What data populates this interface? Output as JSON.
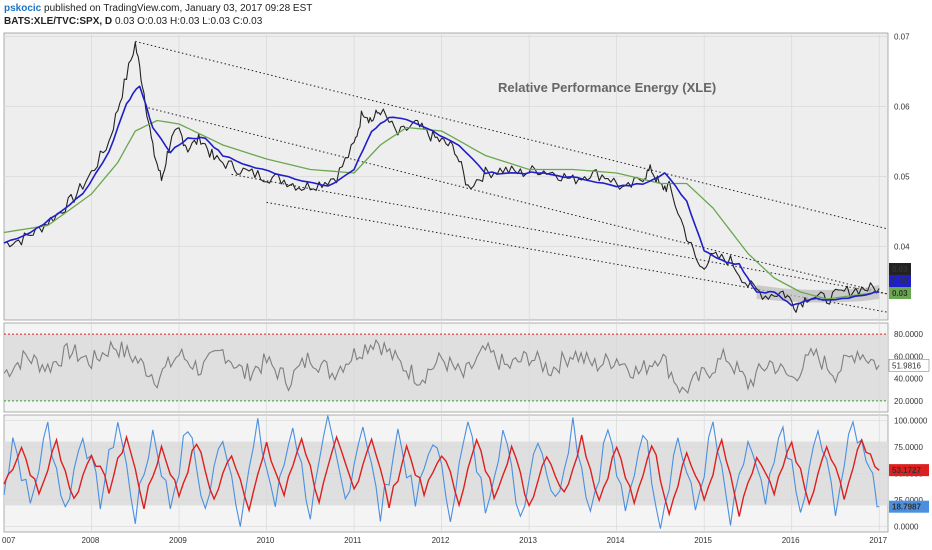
{
  "header": {
    "author": "pskocic",
    "published": "published on TradingView.com, January 03, 2017 09:28 EST",
    "symbol": "BATS:XLE/TVC:SPX, D",
    "ohlc": "0.03 O:0.03 H:0.03 L:0.03 C:0.03"
  },
  "colors": {
    "price": "#222222",
    "ma_fast": "#1f1fc8",
    "ma_slow": "#6aa84f",
    "rsi": "#7f7f7f",
    "stoch_k": "#4a8fe0",
    "stoch_d": "#dd1f1f",
    "band_fill": "#d9d9d9",
    "panel_bg": "#eeeeee",
    "upper_line": "#e02020",
    "lower_line": "#2ea02e"
  },
  "chart_data": [
    {
      "type": "line",
      "title": "Relative Performance Energy (XLE)",
      "x_ticks": [
        "007",
        "2008",
        "2009",
        "2010",
        "2011",
        "2012",
        "2013",
        "2014",
        "2015",
        "2016",
        "2017"
      ],
      "x_range": [
        2007.0,
        2017.1
      ],
      "y_ticks": [
        "0.07",
        "0.06",
        "0.05",
        "0.04"
      ],
      "ylim": [
        0.0295,
        0.0705
      ],
      "last_value_labels": [
        {
          "text": "0.03",
          "color": "#222222"
        },
        {
          "text": "0.03",
          "color": "#1f1fc8"
        },
        {
          "text": "0.03",
          "color": "#6aa84f"
        }
      ],
      "series": [
        {
          "key": "price",
          "x": [
            2007.0,
            2007.2,
            2007.4,
            2007.6,
            2007.8,
            2008.0,
            2008.2,
            2008.35,
            2008.5,
            2008.6,
            2008.7,
            2008.8,
            2008.9,
            2009.0,
            2009.1,
            2009.25,
            2009.4,
            2009.6,
            2009.8,
            2010.0,
            2010.2,
            2010.4,
            2010.6,
            2010.8,
            2011.0,
            2011.1,
            2011.2,
            2011.3,
            2011.5,
            2011.7,
            2011.85,
            2012.0,
            2012.15,
            2012.3,
            2012.5,
            2012.7,
            2012.9,
            2013.1,
            2013.3,
            2013.5,
            2013.7,
            2013.9,
            2014.1,
            2014.3,
            2014.4,
            2014.5,
            2014.6,
            2014.8,
            2014.95,
            2015.1,
            2015.3,
            2015.5,
            2015.7,
            2015.9,
            2016.05,
            2016.2,
            2016.4,
            2016.6,
            2016.8,
            2017.0
          ],
          "y": [
            0.0405,
            0.041,
            0.0425,
            0.0445,
            0.047,
            0.0505,
            0.055,
            0.062,
            0.069,
            0.062,
            0.054,
            0.0495,
            0.055,
            0.0565,
            0.054,
            0.0555,
            0.0525,
            0.0515,
            0.0505,
            0.05,
            0.0495,
            0.0485,
            0.049,
            0.05,
            0.0545,
            0.0595,
            0.058,
            0.0595,
            0.056,
            0.0575,
            0.056,
            0.055,
            0.054,
            0.0485,
            0.0505,
            0.051,
            0.0505,
            0.051,
            0.0505,
            0.0495,
            0.0505,
            0.05,
            0.048,
            0.05,
            0.051,
            0.0485,
            0.0485,
            0.0415,
            0.037,
            0.0385,
            0.038,
            0.0345,
            0.033,
            0.0335,
            0.0315,
            0.033,
            0.0325,
            0.0335,
            0.034,
            0.034
          ]
        },
        {
          "key": "ma_fast",
          "x": [
            2007.0,
            2007.3,
            2007.6,
            2007.9,
            2008.2,
            2008.4,
            2008.55,
            2008.7,
            2008.9,
            2009.1,
            2009.3,
            2009.5,
            2009.8,
            2010.1,
            2010.4,
            2010.7,
            2011.0,
            2011.2,
            2011.4,
            2011.6,
            2011.9,
            2012.2,
            2012.5,
            2012.8,
            2013.1,
            2013.4,
            2013.7,
            2014.0,
            2014.3,
            2014.55,
            2014.8,
            2015.0,
            2015.2,
            2015.4,
            2015.6,
            2015.8,
            2016.0,
            2016.2,
            2016.5,
            2016.8,
            2017.0
          ],
          "y": [
            0.0405,
            0.042,
            0.0445,
            0.0475,
            0.0535,
            0.0605,
            0.063,
            0.057,
            0.0535,
            0.0555,
            0.0555,
            0.053,
            0.0515,
            0.0505,
            0.0495,
            0.0485,
            0.051,
            0.0565,
            0.0585,
            0.058,
            0.0565,
            0.0545,
            0.0505,
            0.0505,
            0.0505,
            0.05,
            0.0495,
            0.0485,
            0.049,
            0.0505,
            0.0465,
            0.0395,
            0.038,
            0.0375,
            0.0335,
            0.0335,
            0.0315,
            0.0325,
            0.0325,
            0.033,
            0.0335
          ]
        },
        {
          "key": "ma_slow",
          "x": [
            2007.0,
            2007.5,
            2008.0,
            2008.3,
            2008.5,
            2008.75,
            2009.0,
            2009.5,
            2010.0,
            2010.5,
            2011.0,
            2011.3,
            2011.6,
            2012.0,
            2012.5,
            2013.0,
            2013.5,
            2014.0,
            2014.5,
            2014.8,
            2015.1,
            2015.5,
            2015.8,
            2016.1,
            2016.4,
            2016.7,
            2017.0
          ],
          "y": [
            0.042,
            0.043,
            0.0475,
            0.052,
            0.0565,
            0.058,
            0.0575,
            0.0545,
            0.0525,
            0.051,
            0.0505,
            0.0545,
            0.057,
            0.0565,
            0.053,
            0.051,
            0.051,
            0.0505,
            0.049,
            0.049,
            0.0455,
            0.039,
            0.0355,
            0.0335,
            0.0325,
            0.033,
            0.0335
          ]
        },
        {
          "key": "band_upper",
          "x": [
            2015.6,
            2015.9,
            2016.2,
            2016.5,
            2016.8,
            2017.0
          ],
          "y": [
            0.0345,
            0.034,
            0.0338,
            0.0338,
            0.034,
            0.0345
          ]
        },
        {
          "key": "band_lower",
          "x": [
            2015.6,
            2015.9,
            2016.2,
            2016.5,
            2016.8,
            2017.0
          ],
          "y": [
            0.0325,
            0.0322,
            0.032,
            0.032,
            0.0322,
            0.0325
          ]
        }
      ],
      "trendlines": [
        {
          "x": [
            2008.5,
            2017.1
          ],
          "y": [
            0.0693,
            0.0425
          ]
        },
        {
          "x": [
            2008.65,
            2017.1
          ],
          "y": [
            0.0598,
            0.0332
          ]
        },
        {
          "x": [
            2009.6,
            2017.1
          ],
          "y": [
            0.0503,
            0.0332
          ]
        },
        {
          "x": [
            2010.0,
            2017.1
          ],
          "y": [
            0.0463,
            0.0306
          ]
        }
      ]
    },
    {
      "type": "line",
      "y_ticks": [
        "80.0000",
        "60.0000",
        "40.0000",
        "20.0000"
      ],
      "ylim": [
        10,
        90
      ],
      "upper_level": 80,
      "lower_level": 20,
      "last_value_label": "51.9816",
      "series": [
        {
          "key": "rsi",
          "x": [
            2007.0,
            2007.25,
            2007.5,
            2007.75,
            2008.0,
            2008.25,
            2008.5,
            2008.75,
            2009.0,
            2009.25,
            2009.5,
            2009.75,
            2010.0,
            2010.25,
            2010.5,
            2010.75,
            2011.0,
            2011.25,
            2011.5,
            2011.75,
            2012.0,
            2012.25,
            2012.5,
            2012.75,
            2013.0,
            2013.25,
            2013.5,
            2013.75,
            2014.0,
            2014.25,
            2014.5,
            2014.75,
            2015.0,
            2015.25,
            2015.5,
            2015.75,
            2016.0,
            2016.25,
            2016.5,
            2016.75,
            2017.0
          ],
          "y": [
            45,
            60,
            50,
            65,
            55,
            70,
            58,
            40,
            62,
            48,
            65,
            44,
            55,
            38,
            60,
            45,
            62,
            75,
            55,
            40,
            58,
            42,
            65,
            50,
            60,
            48,
            63,
            52,
            58,
            45,
            62,
            28,
            44,
            60,
            35,
            55,
            40,
            62,
            45,
            65,
            52
          ]
        }
      ]
    },
    {
      "type": "line",
      "y_ticks": [
        "100.0000",
        "75.0000",
        "50.0000",
        "25.0000",
        "0.0000"
      ],
      "ylim": [
        -5,
        105
      ],
      "band": [
        20,
        80
      ],
      "last_value_labels": [
        {
          "text": "53.1727",
          "color": "#dd1f1f"
        },
        {
          "text": "18.7987",
          "color": "#4a8fe0"
        }
      ],
      "series": [
        {
          "key": "stoch_d",
          "x": [
            2007.0,
            2007.2,
            2007.4,
            2007.6,
            2007.8,
            2008.0,
            2008.2,
            2008.4,
            2008.6,
            2008.8,
            2009.0,
            2009.2,
            2009.4,
            2009.6,
            2009.8,
            2010.0,
            2010.2,
            2010.4,
            2010.6,
            2010.8,
            2011.0,
            2011.2,
            2011.4,
            2011.6,
            2011.8,
            2012.0,
            2012.2,
            2012.4,
            2012.6,
            2012.8,
            2013.0,
            2013.2,
            2013.4,
            2013.6,
            2013.8,
            2014.0,
            2014.2,
            2014.4,
            2014.6,
            2014.8,
            2015.0,
            2015.2,
            2015.4,
            2015.6,
            2015.8,
            2016.0,
            2016.2,
            2016.4,
            2016.6,
            2016.8,
            2017.0
          ],
          "y": [
            40,
            75,
            30,
            80,
            25,
            70,
            35,
            85,
            20,
            75,
            30,
            80,
            25,
            70,
            20,
            75,
            30,
            85,
            25,
            80,
            35,
            85,
            20,
            75,
            30,
            70,
            25,
            80,
            30,
            75,
            20,
            70,
            30,
            85,
            25,
            75,
            20,
            80,
            15,
            70,
            25,
            80,
            10,
            65,
            30,
            80,
            20,
            75,
            30,
            80,
            53
          ]
        },
        {
          "key": "stoch_k",
          "x": [
            2007.0,
            2007.1,
            2007.3,
            2007.5,
            2007.7,
            2007.9,
            2008.1,
            2008.3,
            2008.5,
            2008.7,
            2008.9,
            2009.1,
            2009.3,
            2009.5,
            2009.7,
            2009.9,
            2010.1,
            2010.3,
            2010.5,
            2010.7,
            2010.9,
            2011.1,
            2011.3,
            2011.5,
            2011.7,
            2011.9,
            2012.1,
            2012.3,
            2012.5,
            2012.7,
            2012.9,
            2013.1,
            2013.3,
            2013.5,
            2013.7,
            2013.9,
            2014.1,
            2014.3,
            2014.5,
            2014.7,
            2014.9,
            2015.1,
            2015.3,
            2015.5,
            2015.7,
            2015.9,
            2016.1,
            2016.3,
            2016.5,
            2016.7,
            2016.9,
            2017.0
          ],
          "y": [
            30,
            85,
            20,
            95,
            15,
            90,
            25,
            100,
            10,
            90,
            20,
            95,
            15,
            88,
            10,
            92,
            20,
            98,
            12,
            95,
            25,
            100,
            10,
            90,
            20,
            85,
            15,
            95,
            20,
            90,
            10,
            88,
            22,
            100,
            15,
            92,
            10,
            95,
            5,
            85,
            15,
            95,
            2,
            80,
            20,
            95,
            10,
            90,
            20,
            95,
            60,
            19
          ]
        }
      ]
    }
  ]
}
